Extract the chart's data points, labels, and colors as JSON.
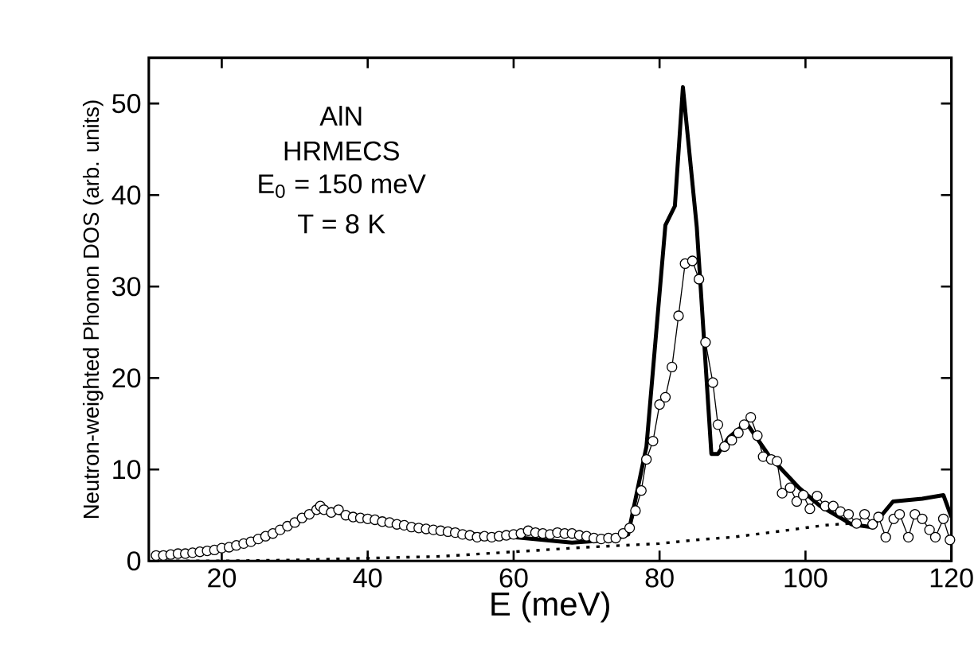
{
  "chart_data": {
    "type": "line",
    "xlabel": "E (meV)",
    "ylabel": "Neutron-weighted Phonon DOS (arb. units)",
    "annotations": [
      "AlN",
      "HRMECS",
      "E$_{0}$ = 150 meV",
      "T = 8 K"
    ],
    "xlim": [
      10,
      120
    ],
    "ylim": [
      0,
      55
    ],
    "xticks": [
      20,
      40,
      60,
      80,
      100,
      120
    ],
    "yticks": [
      0,
      10,
      20,
      30,
      40,
      50
    ],
    "series": [
      {
        "color": "#000000",
        "marker": "none",
        "line_style": "dotted",
        "x": [
          11,
          20,
          30,
          40,
          50,
          60,
          70,
          80,
          85,
          90,
          97,
          102.6,
          106
        ],
        "values": [
          0,
          0,
          0.1,
          0.3,
          0.5,
          1.0,
          1.5,
          1.9,
          2.3,
          2.6,
          3.3,
          3.9,
          4.1
        ]
      },
      {
        "color": "#000000",
        "marker": "circle",
        "line_style": "solid",
        "x": [
          11,
          12,
          13,
          14,
          15,
          16,
          17,
          18,
          19,
          20,
          21,
          22,
          23,
          24,
          25,
          26,
          27,
          28,
          29,
          30,
          31,
          32,
          33,
          33.5,
          34,
          35,
          36,
          37,
          38,
          39,
          40,
          41,
          42,
          43,
          44,
          45,
          46,
          47,
          48,
          49,
          50,
          51,
          52,
          53,
          54,
          55,
          56,
          57,
          58,
          59,
          60,
          61,
          62,
          63,
          64,
          65,
          66,
          67,
          68,
          69,
          70,
          71,
          72,
          73,
          74,
          75,
          75.9,
          76.7,
          77.5,
          78.2,
          79.1,
          80,
          80.8,
          81.7,
          82.6,
          83.5,
          84.5,
          85.4,
          86.3,
          87.3,
          88,
          88.9,
          89.9,
          90.8,
          91.6,
          92.5,
          93.4,
          94.2,
          95.3,
          96.1,
          96.8,
          97.9,
          98.8,
          99.7,
          100.6,
          101.6,
          102.7,
          103.8,
          104.8,
          105.9,
          107,
          108.1,
          109.2,
          110,
          111,
          112.1,
          112.9,
          114.1,
          115,
          116,
          117,
          117.8,
          118.9,
          119.8
        ],
        "values": [
          0.6,
          0.6,
          0.7,
          0.8,
          0.8,
          0.9,
          1.0,
          1.1,
          1.2,
          1.4,
          1.5,
          1.7,
          1.9,
          2.1,
          2.4,
          2.7,
          3.0,
          3.4,
          3.8,
          4.2,
          4.7,
          5.1,
          5.6,
          6.0,
          5.6,
          5.3,
          5.6,
          5.0,
          4.8,
          4.7,
          4.6,
          4.5,
          4.3,
          4.2,
          4.0,
          3.9,
          3.7,
          3.6,
          3.5,
          3.4,
          3.3,
          3.2,
          3.1,
          2.9,
          2.8,
          2.6,
          2.7,
          2.6,
          2.7,
          2.8,
          2.9,
          3.0,
          3.3,
          3.1,
          3.0,
          2.9,
          3.1,
          3.0,
          3.0,
          2.8,
          2.7,
          2.5,
          2.4,
          2.5,
          2.5,
          3.0,
          3.6,
          5.5,
          7.7,
          11.1,
          13.1,
          17.1,
          17.9,
          21.2,
          26.8,
          32.5,
          32.8,
          30.8,
          23.9,
          19.5,
          14.9,
          12.5,
          13.2,
          14.0,
          14.9,
          15.7,
          13.7,
          11.4,
          11.1,
          10.9,
          7.4,
          8.0,
          6.5,
          7.2,
          5.7,
          7.1,
          6.0,
          6.0,
          5.4,
          5.1,
          4.1,
          5.1,
          4.0,
          4.8,
          2.6,
          4.6,
          5.1,
          2.6,
          5.1,
          4.6,
          3.4,
          2.6,
          4.6,
          2.3
        ]
      },
      {
        "color": "#000000",
        "marker": "none",
        "line_style": "solid",
        "x": [
          11,
          20,
          30,
          33.5,
          40,
          50,
          60,
          68,
          73.5,
          75.7,
          78.2,
          80.8,
          82.1,
          83.2,
          85.1,
          87.1,
          88,
          89.5,
          91.9,
          95,
          99.1,
          102,
          106.3,
          109.1,
          112,
          116,
          118.9,
          120
        ],
        "values": [
          0.5,
          1.2,
          4.0,
          5.8,
          4.4,
          3.2,
          2.6,
          2.0,
          2.3,
          2.9,
          12.5,
          36.7,
          38.8,
          51.8,
          36.5,
          11.7,
          11.7,
          13.5,
          15.1,
          11.5,
          8.0,
          6.0,
          4.0,
          3.7,
          6.5,
          6.8,
          7.2,
          4.8
        ]
      }
    ]
  }
}
